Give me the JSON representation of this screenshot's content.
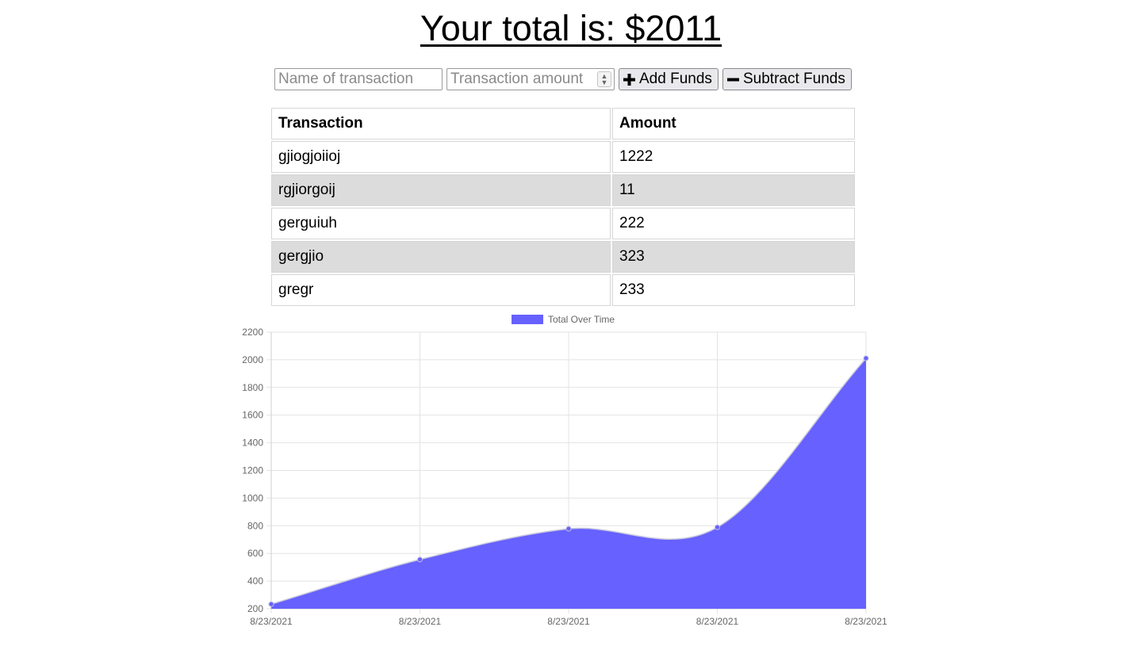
{
  "header": {
    "title": "Your total is: $2011"
  },
  "form": {
    "name_placeholder": "Name of transaction",
    "amount_placeholder": "Transaction amount",
    "add_label": "Add Funds",
    "subtract_label": "Subtract Funds",
    "add_icon": "plus-icon",
    "subtract_icon": "minus-icon"
  },
  "table": {
    "headers": [
      "Transaction",
      "Amount"
    ],
    "rows": [
      {
        "name": "gjiogjoiioj",
        "amount": "1222"
      },
      {
        "name": "rgjiorgoij",
        "amount": "11"
      },
      {
        "name": "gerguiuh",
        "amount": "222"
      },
      {
        "name": "gergjio",
        "amount": "323"
      },
      {
        "name": "gregr",
        "amount": "233"
      }
    ]
  },
  "chart_data": {
    "type": "area",
    "categories": [
      "8/23/2021",
      "8/23/2021",
      "8/23/2021",
      "8/23/2021",
      "8/23/2021"
    ],
    "series": [
      {
        "name": "Total Over Time",
        "values": [
          233,
          556,
          778,
          789,
          2011
        ],
        "color": "#6661ff"
      }
    ],
    "ylim": [
      200,
      2200
    ],
    "yticks": [
      200,
      400,
      600,
      800,
      1000,
      1200,
      1400,
      1600,
      1800,
      2000,
      2200
    ],
    "grid": true,
    "legend": "top-center"
  }
}
